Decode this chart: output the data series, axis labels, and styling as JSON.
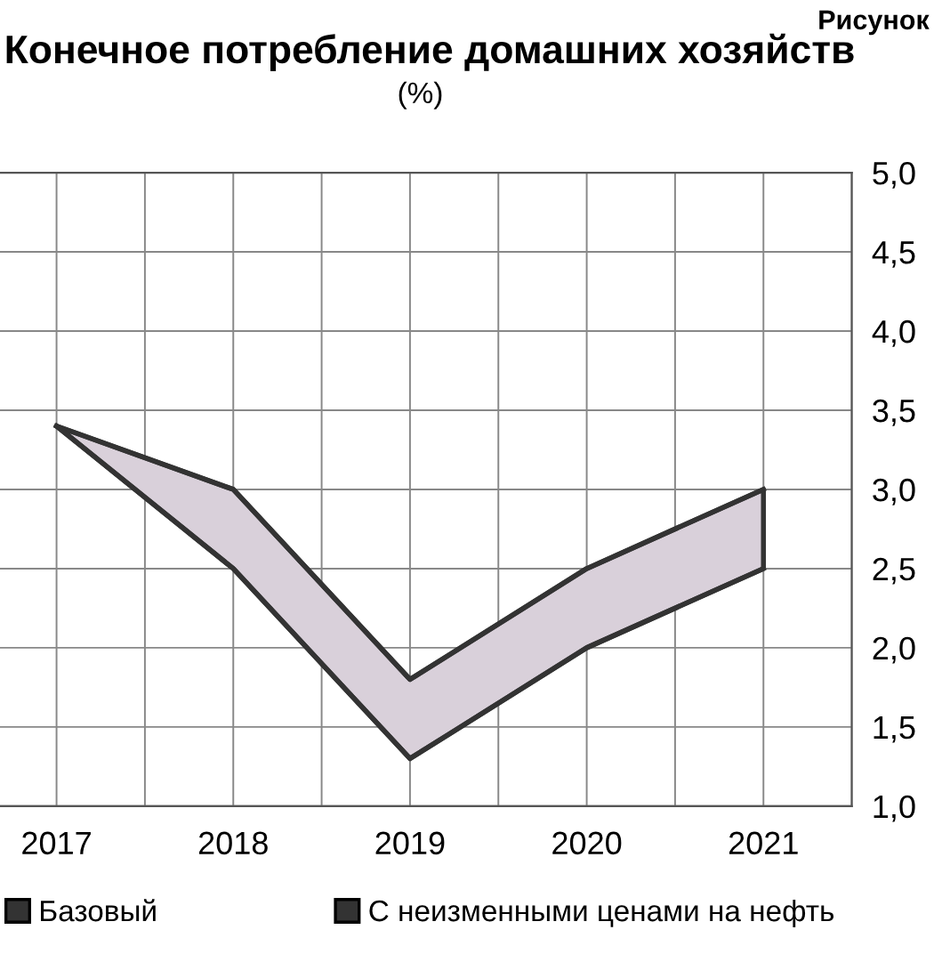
{
  "chart_data": {
    "type": "line",
    "title": "Конечное потребление домашних хозяйств",
    "subtitle": "(%)",
    "annotations": [
      "Рисунок"
    ],
    "x": [
      2017,
      2018,
      2019,
      2020,
      2021
    ],
    "series": [
      {
        "name": "Базовый",
        "color": "#333333",
        "values": [
          3.4,
          3.0,
          1.8,
          2.5,
          3.0
        ],
        "lower": [
          3.4,
          2.5,
          1.3,
          2.0,
          2.5
        ],
        "upper": [
          3.4,
          3.0,
          1.8,
          2.5,
          3.0
        ]
      },
      {
        "name": "С неизменными ценами на нефть",
        "color": "#333333",
        "values": [
          3.4,
          2.5,
          1.3,
          2.0,
          2.5
        ]
      }
    ],
    "xlim": [
      2016.68,
      2021.5
    ],
    "xticks": [
      2017,
      {
        "value": 2017.5,
        "label": null
      },
      2018,
      {
        "value": 2018.5,
        "label": null
      },
      2019,
      {
        "value": 2019.5,
        "label": null
      },
      2020,
      {
        "value": 2020.5,
        "label": null
      },
      2021,
      {
        "value": 2021.5,
        "label": null
      }
    ],
    "ylim": [
      1.0,
      5.0
    ],
    "yticks": [
      {
        "value": 1.0,
        "label": "1,0"
      },
      {
        "value": 1.5,
        "label": "1,5"
      },
      {
        "value": 2.0,
        "label": "2,0"
      },
      {
        "value": 2.5,
        "label": "2,5"
      },
      {
        "value": 3.0,
        "label": "3,0"
      },
      {
        "value": 3.5,
        "label": "3,5"
      },
      {
        "value": 4.0,
        "label": "4,0"
      },
      {
        "value": 4.5,
        "label": "4,5"
      },
      {
        "value": 5.0,
        "label": "5,0"
      }
    ],
    "grid": true,
    "legend": "bottom",
    "marker": "none",
    "line_style": "solid"
  }
}
